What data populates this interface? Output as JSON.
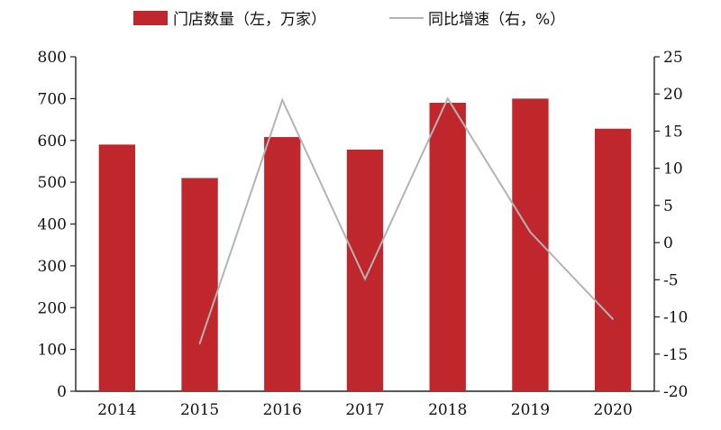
{
  "chart_data": {
    "type": "bar+line",
    "categories": [
      "2014",
      "2015",
      "2016",
      "2017",
      "2018",
      "2019",
      "2020"
    ],
    "series": [
      {
        "name": "门店数量（左，万家）",
        "type": "bar",
        "axis": "left",
        "color": "#c0272d",
        "values": [
          590,
          510,
          608,
          578,
          690,
          700,
          628
        ]
      },
      {
        "name": "同比增速（右，%）",
        "type": "line",
        "axis": "right",
        "color": "#b3b3b3",
        "values": [
          null,
          -13.6,
          19.2,
          -4.9,
          19.4,
          1.4,
          -10.3
        ]
      }
    ],
    "y_left": {
      "min": 0,
      "max": 800,
      "ticks": [
        "0",
        "100",
        "200",
        "300",
        "400",
        "500",
        "600",
        "700",
        "800"
      ]
    },
    "y_right": {
      "min": -20,
      "max": 25,
      "ticks": [
        "-20",
        "-15",
        "-10",
        "-5",
        "0",
        "5",
        "10",
        "15",
        "20",
        "25"
      ]
    },
    "legend_position": "top",
    "grid": false
  }
}
